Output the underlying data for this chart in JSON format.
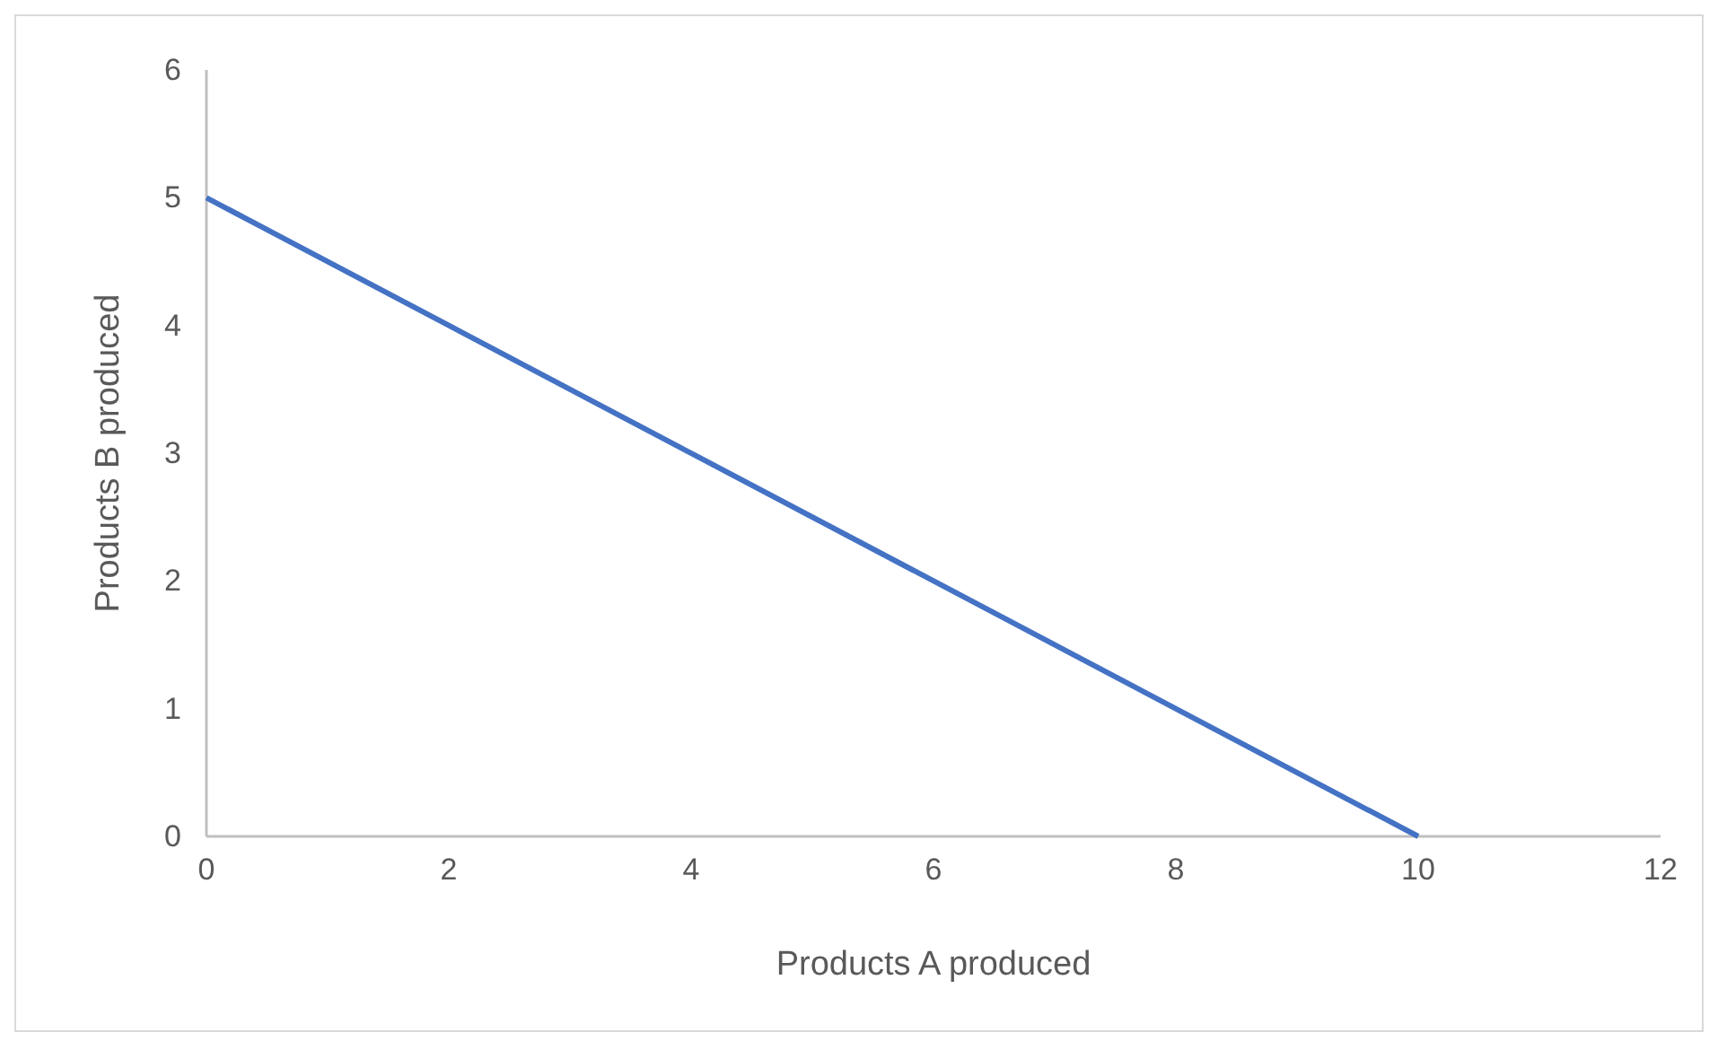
{
  "chart_data": {
    "type": "line",
    "xlabel": "Products A produced",
    "ylabel": "Products B produced",
    "x": [
      0,
      10
    ],
    "series": [
      {
        "color": "#4472c4",
        "values": [
          5,
          0
        ]
      }
    ],
    "xlim": [
      0,
      12
    ],
    "xticks": [
      0,
      2,
      4,
      6,
      8,
      10,
      12
    ],
    "ylim": [
      0,
      6
    ],
    "yticks": [
      0,
      1,
      2,
      3,
      4,
      5,
      6
    ],
    "grid": false,
    "marker": "none",
    "line_style": "solid"
  }
}
